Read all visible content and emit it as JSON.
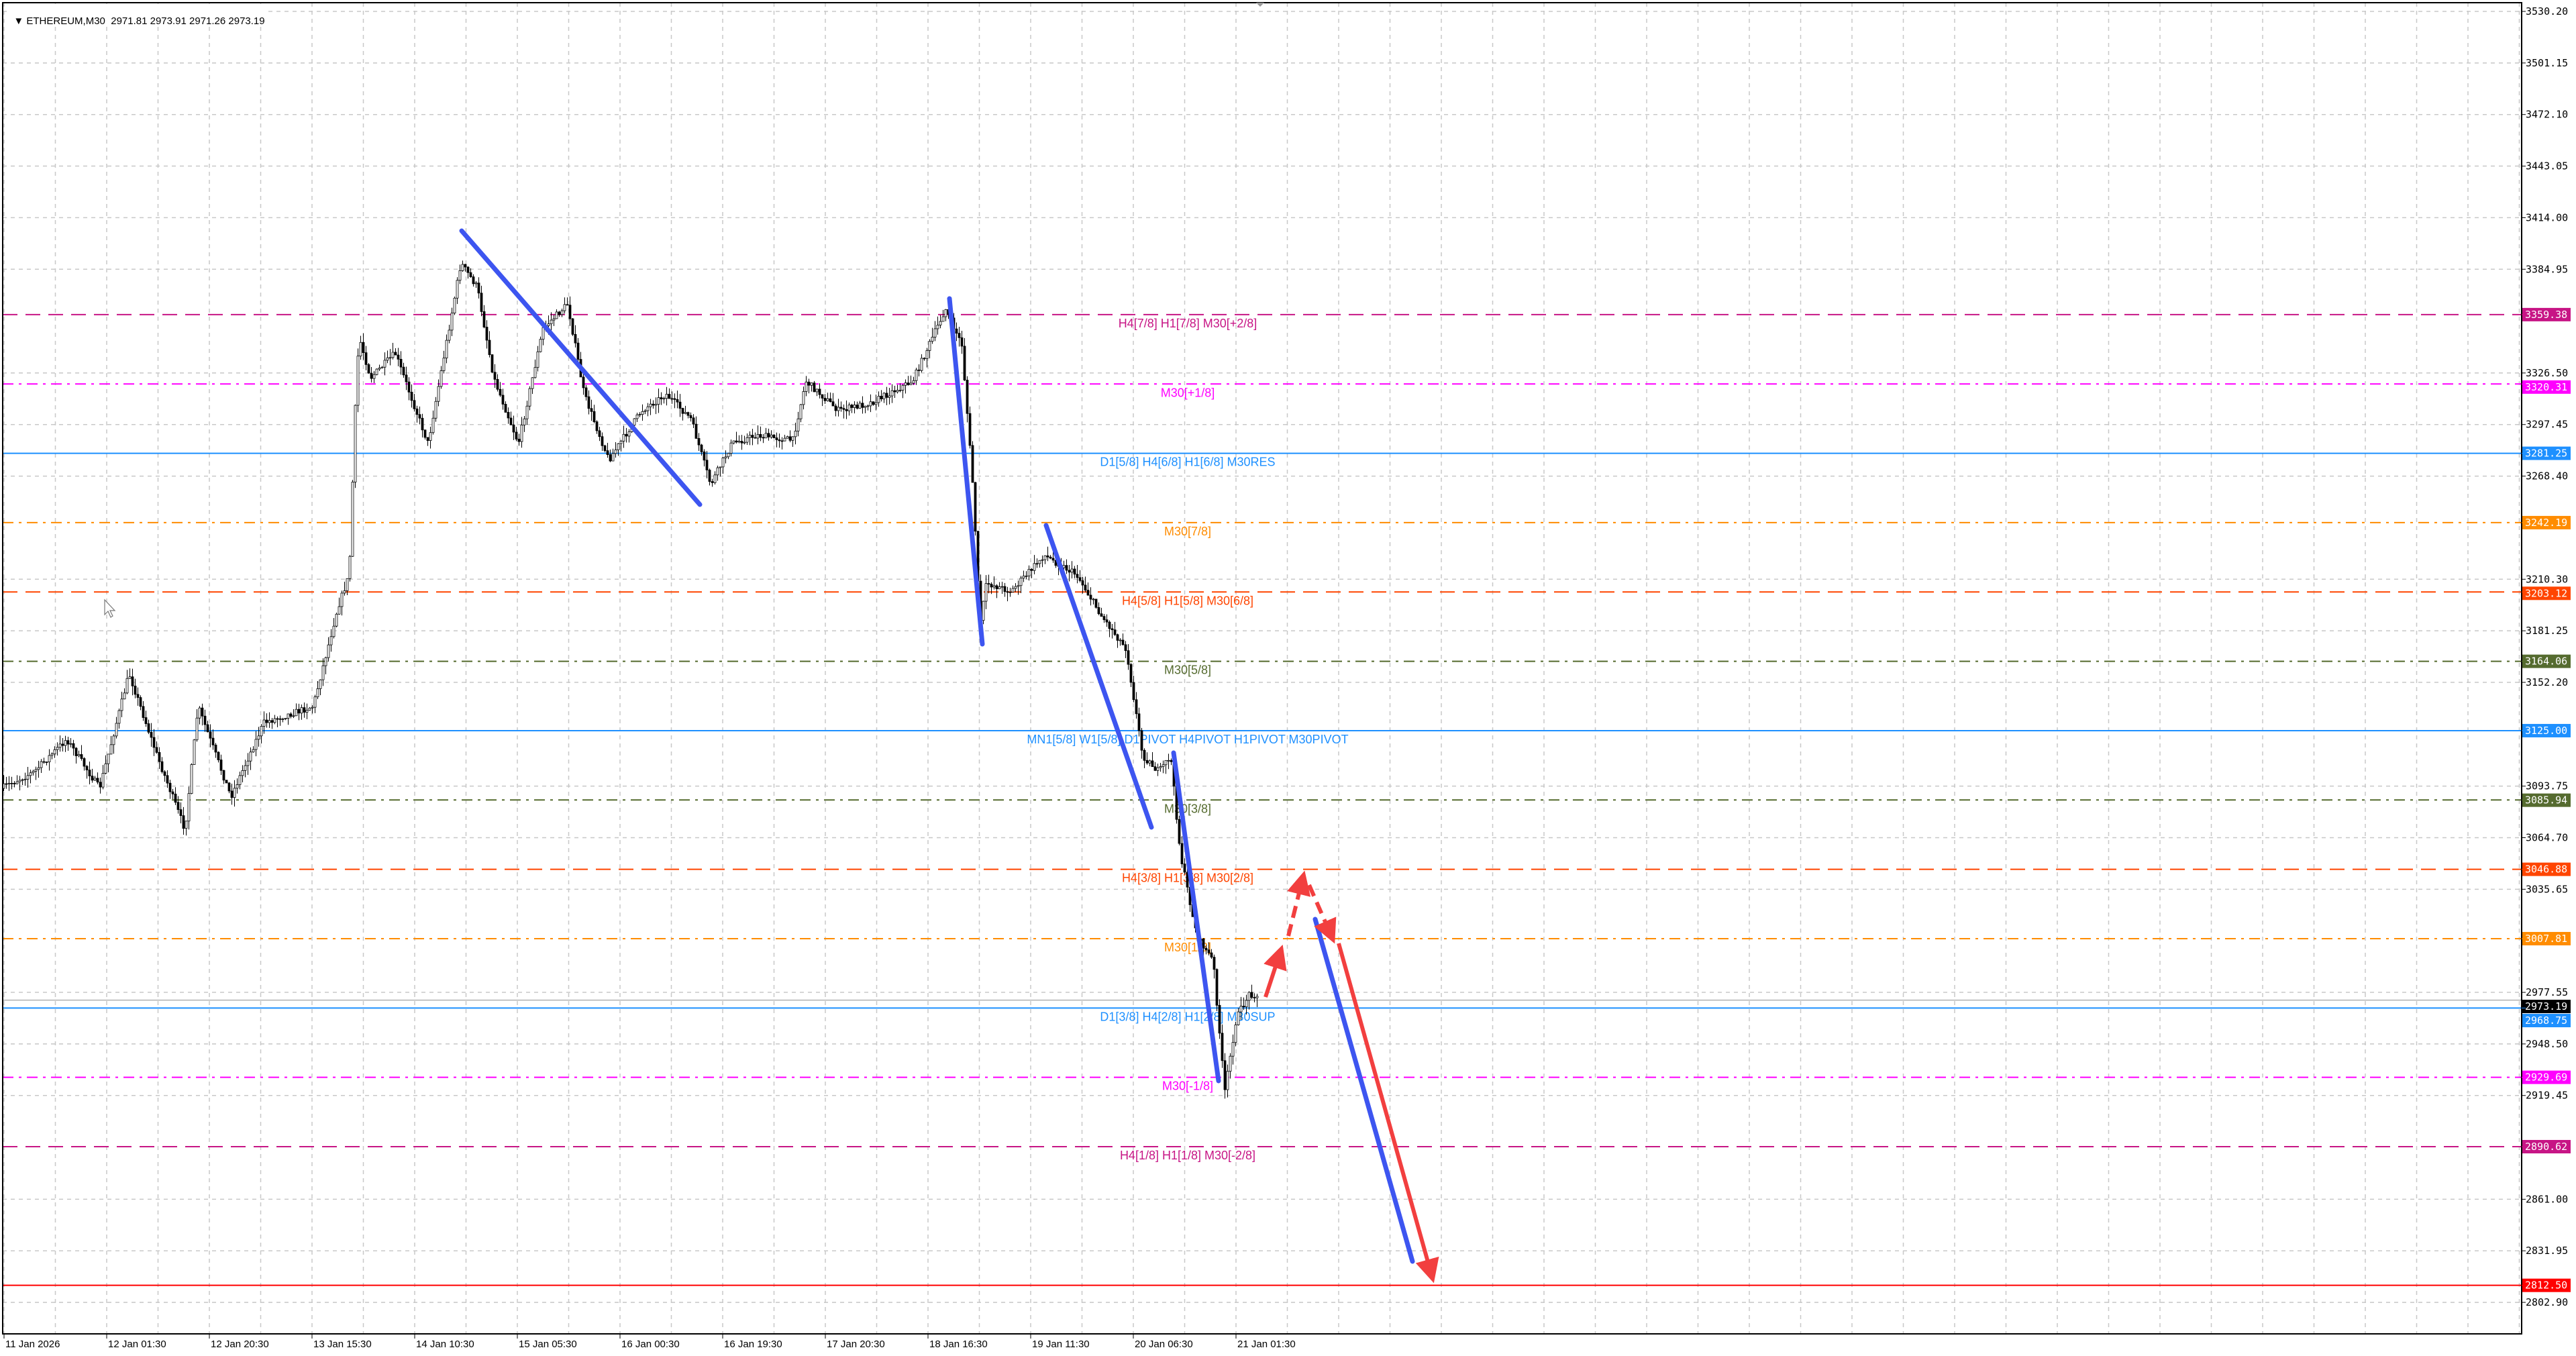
{
  "header": {
    "collapse_icon": "triangle-down-icon",
    "symbol": "ETHEREUM,M30",
    "ohlc": "2971.81 2973.91 2971.26 2973.19"
  },
  "price_axis": {
    "ticks": [
      "3530.20",
      "3501.15",
      "3472.10",
      "3443.05",
      "3414.00",
      "3384.95",
      "3326.50",
      "3297.45",
      "3268.40",
      "3210.30",
      "3181.25",
      "3152.20",
      "3093.75",
      "3064.70",
      "3035.65",
      "2977.55",
      "2948.50",
      "2919.45",
      "2861.00",
      "2831.95",
      "2802.90"
    ],
    "current_price": {
      "value": "2973.19",
      "color": "#000000"
    }
  },
  "time_axis": {
    "labels": [
      "11 Jan 2026",
      "12 Jan 01:30",
      "12 Jan 20:30",
      "13 Jan 15:30",
      "14 Jan 10:30",
      "15 Jan 05:30",
      "16 Jan 00:30",
      "16 Jan 19:30",
      "17 Jan 20:30",
      "18 Jan 16:30",
      "19 Jan 11:30",
      "20 Jan 06:30",
      "21 Jan 01:30"
    ]
  },
  "levels": [
    {
      "price": "3359.38",
      "label": "H4[7/8] H1[7/8] M30[+2/8]",
      "color": "#c71585",
      "style": "dashed"
    },
    {
      "price": "3320.31",
      "label": "M30[+1/8]",
      "color": "#ff00ff",
      "style": "dashdot"
    },
    {
      "price": "3281.25",
      "label": "D1[5/8] H4[6/8] H1[6/8] M30RES",
      "color": "#1e90ff",
      "style": "solid"
    },
    {
      "price": "3242.19",
      "label": "M30[7/8]",
      "color": "#ff8c00",
      "style": "dashdot"
    },
    {
      "price": "3203.12",
      "label": "H4[5/8] H1[5/8] M30[6/8]",
      "color": "#ff4500",
      "style": "dashed"
    },
    {
      "price": "3164.06",
      "label": "M30[5/8]",
      "color": "#556b2f",
      "style": "dashdot"
    },
    {
      "price": "3125.00",
      "label": "MN1[5/8] W1[5/8] D1PIVOT H4PIVOT H1PIVOT M30PIVOT",
      "color": "#1e90ff",
      "style": "solid"
    },
    {
      "price": "3085.94",
      "label": "M30[3/8]",
      "color": "#556b2f",
      "style": "dashdot"
    },
    {
      "price": "3046.88",
      "label": "H4[3/8] H1[3/8] M30[2/8]",
      "color": "#ff4500",
      "style": "dashed"
    },
    {
      "price": "3007.81",
      "label": "M30[1/8]",
      "color": "#ff8c00",
      "style": "dashdot"
    },
    {
      "price": "2968.75",
      "label": "D1[3/8] H4[2/8] H1[2/8] M30SUP",
      "color": "#1e90ff",
      "style": "solid"
    },
    {
      "price": "2929.69",
      "label": "M30[-1/8]",
      "color": "#ff00ff",
      "style": "dashdot"
    },
    {
      "price": "2890.62",
      "label": "H4[1/8] H1[1/8] M30[-2/8]",
      "color": "#c71585",
      "style": "dashed"
    },
    {
      "price": "2812.50",
      "label": "",
      "color": "#ff0000",
      "style": "solid"
    }
  ],
  "drawing_colors": {
    "trend": "#3d55f0",
    "projection": "#f23f3f"
  },
  "cursor_icon": "mouse-pointer-icon"
}
